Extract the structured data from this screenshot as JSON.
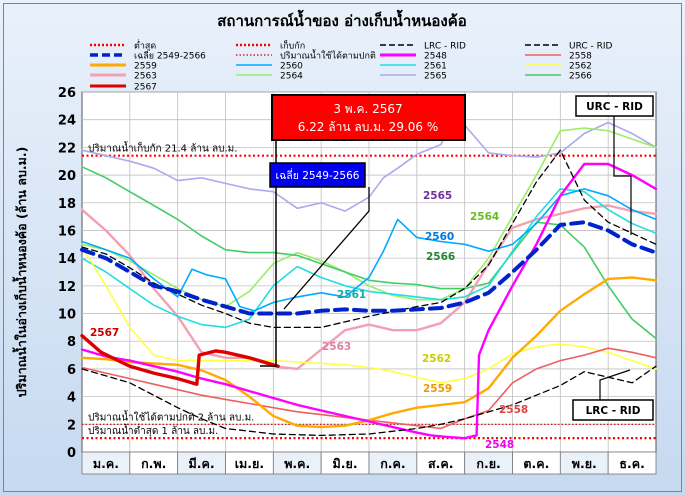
{
  "chart_data": {
    "type": "line",
    "title": "สถานการณ์น้ำของ อ่างเก็บน้ำหนองค้อ",
    "ylabel": "ปริมาณน้ำในอ่างเก็บน้ำหนองค้อ (ล้าน ลบ.ม.)",
    "xlabel": "",
    "ylim": [
      0,
      26
    ],
    "yticks": [
      0,
      2,
      4,
      6,
      8,
      10,
      12,
      14,
      16,
      18,
      20,
      22,
      24,
      26
    ],
    "x_units": "month index (0 = start of ม.ค.)",
    "xlim": [
      0,
      12
    ],
    "categories": [
      "ม.ค.",
      "ก.พ.",
      "มี.ค.",
      "เม.ย.",
      "พ.ค.",
      "มิ.ย.",
      "ก.ค.",
      "ส.ค.",
      "ก.ย.",
      "ต.ค.",
      "พ.ย.",
      "ธ.ค."
    ],
    "grid": true,
    "legend_position": "top",
    "reference_lines": [
      {
        "name": "ต่ำสุด",
        "value": 1.0,
        "color": "#ff0000",
        "label": "ปริมาณน้ำต่ำสุด 1 ล้าน ลบ.ม."
      },
      {
        "name": "เก็บกัก",
        "value": 21.4,
        "color": "#ff0000",
        "label": "ปริมาณน้ำเก็บกัก 21.4 ล้าน ลบ.ม."
      },
      {
        "name": "ปริมาณน้ำใช้ได้ตามปกติ",
        "value": 2.0,
        "color": "#cc0000",
        "label": "ปริมาณน้ำใช้ได้ตามปกติ 2 ล้าน ลบ.ม."
      }
    ],
    "series": [
      {
        "name": "LRC - RID",
        "color": "#000000",
        "style": "dashed",
        "width": 1.3,
        "x": [
          0,
          1,
          2,
          2.5,
          3,
          3.5,
          4,
          5,
          6,
          7,
          7.5,
          8,
          9,
          10,
          10.5,
          11,
          11.5,
          12
        ],
        "y": [
          6.0,
          5.0,
          3.2,
          2.4,
          1.7,
          1.5,
          1.3,
          1.2,
          1.3,
          1.7,
          2.0,
          2.4,
          3.4,
          4.8,
          5.8,
          5.4,
          5.0,
          6.2
        ]
      },
      {
        "name": "URC - RID",
        "color": "#000000",
        "style": "dashed",
        "width": 1.3,
        "x": [
          0,
          0.5,
          1,
          1.5,
          2,
          2.5,
          3,
          3.5,
          4,
          5,
          6,
          7,
          7.5,
          8,
          8.5,
          9,
          9.5,
          10,
          10.5,
          11,
          11.5,
          12
        ],
        "y": [
          14.8,
          14.3,
          13.3,
          12.2,
          11.4,
          10.6,
          10.0,
          9.3,
          9.0,
          9.0,
          9.8,
          10.5,
          10.8,
          11.8,
          13.5,
          16.5,
          19.5,
          21.8,
          18.2,
          16.6,
          15.8,
          15.0
        ]
      },
      {
        "name": "เฉลี่ย 2549-2566",
        "color": "#0022cc",
        "style": "dashed",
        "width": 4,
        "x": [
          0,
          0.5,
          1,
          1.5,
          2,
          2.5,
          3,
          3.5,
          4,
          4.5,
          5,
          5.5,
          6,
          6.5,
          7,
          7.5,
          8,
          8.5,
          9,
          9.5,
          10,
          10.5,
          11,
          11.5,
          12
        ],
        "y": [
          14.6,
          14.0,
          13.0,
          12.0,
          11.6,
          11.0,
          10.5,
          10.0,
          10.0,
          10.0,
          10.2,
          10.3,
          10.2,
          10.2,
          10.3,
          10.4,
          10.8,
          11.5,
          13.0,
          14.6,
          16.4,
          16.6,
          16.0,
          15.0,
          14.4
        ]
      },
      {
        "name": "2548",
        "color": "#ff00ff",
        "width": 2.4,
        "x": [
          0,
          0.5,
          1,
          1.5,
          2,
          2.5,
          3,
          3.5,
          4,
          4.5,
          5,
          5.5,
          6,
          6.5,
          7,
          7.3,
          7.6,
          8,
          8.25,
          8.3,
          8.5,
          9,
          9.5,
          10,
          10.5,
          11,
          11.5,
          12
        ],
        "y": [
          7.4,
          6.9,
          6.6,
          6.2,
          5.8,
          5.3,
          4.9,
          4.4,
          3.9,
          3.4,
          3.0,
          2.6,
          2.2,
          1.8,
          1.4,
          1.2,
          1.1,
          1.0,
          1.2,
          7.0,
          8.8,
          12.0,
          15.0,
          18.5,
          20.8,
          20.8,
          20.0,
          19.0
        ]
      },
      {
        "name": "2558",
        "color": "#ee6060",
        "width": 1.6,
        "x": [
          0,
          0.5,
          1,
          1.5,
          2,
          2.5,
          3,
          3.5,
          4,
          4.5,
          5,
          5.5,
          6,
          6.5,
          7,
          7.5,
          8,
          8.5,
          9,
          9.5,
          10,
          10.5,
          11,
          11.5,
          12
        ],
        "y": [
          6.1,
          5.7,
          5.3,
          4.9,
          4.5,
          4.1,
          3.8,
          3.5,
          3.2,
          2.9,
          2.7,
          2.5,
          2.3,
          2.1,
          1.9,
          1.7,
          2.4,
          3.0,
          5.0,
          6.0,
          6.6,
          7.0,
          7.5,
          7.2,
          6.8
        ]
      },
      {
        "name": "2559",
        "color": "#ffaa00",
        "width": 2.4,
        "x": [
          0,
          0.5,
          1,
          1.5,
          2,
          2.5,
          3,
          3.5,
          4,
          4.5,
          5,
          5.5,
          6,
          6.5,
          7,
          7.5,
          8,
          8.5,
          9,
          9.5,
          10,
          10.5,
          11,
          11.5,
          12
        ],
        "y": [
          6.8,
          6.7,
          6.5,
          6.4,
          6.3,
          5.9,
          5.2,
          4.0,
          2.6,
          1.9,
          1.8,
          1.9,
          2.3,
          2.8,
          3.2,
          3.4,
          3.6,
          4.6,
          6.8,
          8.4,
          10.2,
          11.4,
          12.5,
          12.6,
          12.4
        ]
      },
      {
        "name": "2560",
        "color": "#00aaff",
        "width": 1.6,
        "x": [
          0,
          0.5,
          1,
          1.5,
          2,
          2.3,
          2.6,
          3,
          3.3,
          3.6,
          4,
          4.5,
          5,
          5.5,
          6,
          6.3,
          6.6,
          7,
          7.5,
          8,
          8.5,
          9,
          9.5,
          10,
          10.5,
          11,
          11.5,
          12
        ],
        "y": [
          15.2,
          14.6,
          14.0,
          12.5,
          11.2,
          13.2,
          12.8,
          12.5,
          10.5,
          10.2,
          10.8,
          11.2,
          11.5,
          11.2,
          12.6,
          14.5,
          16.8,
          15.5,
          15.2,
          15.0,
          14.5,
          15.0,
          16.5,
          18.5,
          19.0,
          18.5,
          17.5,
          16.8
        ]
      },
      {
        "name": "2561",
        "color": "#22dddd",
        "width": 1.6,
        "x": [
          0,
          0.5,
          1,
          1.5,
          2,
          2.5,
          3,
          3.5,
          4,
          4.5,
          5,
          5.5,
          6,
          6.5,
          7,
          7.5,
          8,
          8.5,
          9,
          9.5,
          10,
          10.5,
          11,
          11.5,
          12
        ],
        "y": [
          14.0,
          13.0,
          11.8,
          10.6,
          9.8,
          9.2,
          9.0,
          9.6,
          12.0,
          13.4,
          12.6,
          12.0,
          11.6,
          11.4,
          11.2,
          11.0,
          11.2,
          12.0,
          14.5,
          17.0,
          19.0,
          18.8,
          17.5,
          16.5,
          15.8
        ]
      },
      {
        "name": "2562",
        "color": "#ffff44",
        "width": 1.6,
        "x": [
          0,
          0.5,
          1,
          1.5,
          2,
          2.5,
          3,
          3.5,
          4,
          4.5,
          5,
          5.5,
          6,
          6.5,
          7,
          7.5,
          8,
          8.5,
          9,
          9.5,
          10,
          10.5,
          11,
          11.5,
          12
        ],
        "y": [
          14.8,
          12.0,
          9.0,
          7.0,
          6.6,
          6.6,
          6.6,
          6.6,
          6.6,
          6.5,
          6.4,
          6.3,
          6.1,
          5.8,
          5.4,
          5.0,
          5.3,
          6.0,
          7.1,
          7.6,
          7.8,
          7.6,
          7.2,
          6.6,
          6.0
        ]
      },
      {
        "name": "2563",
        "color": "#f4a0b4",
        "width": 2.4,
        "x": [
          0,
          0.5,
          1,
          1.5,
          2,
          2.5,
          3,
          3.5,
          4,
          4.5,
          5,
          5.5,
          6,
          6.5,
          7,
          7.5,
          8,
          8.5,
          9,
          9.5,
          10,
          10.5,
          11,
          11.5,
          12
        ],
        "y": [
          17.5,
          16.0,
          14.2,
          11.8,
          9.8,
          7.2,
          6.8,
          6.8,
          6.2,
          6.0,
          7.4,
          8.8,
          9.2,
          8.8,
          8.8,
          9.3,
          10.8,
          13.6,
          16.2,
          16.8,
          17.2,
          17.6,
          17.8,
          17.4,
          17.2
        ]
      },
      {
        "name": "2564",
        "color": "#99ee66",
        "width": 1.6,
        "x": [
          0,
          0.5,
          1,
          1.5,
          2,
          2.5,
          3,
          3.5,
          4,
          4.5,
          5,
          5.5,
          6,
          6.5,
          7,
          7.5,
          8,
          8.5,
          9,
          9.5,
          10,
          10.5,
          11,
          11.5,
          12
        ],
        "y": [
          15.0,
          14.6,
          13.8,
          12.8,
          11.8,
          11.0,
          10.5,
          11.6,
          13.6,
          14.4,
          13.8,
          13.0,
          12.0,
          11.3,
          11.0,
          11.0,
          11.8,
          14.0,
          17.0,
          20.0,
          23.2,
          23.4,
          23.2,
          22.6,
          22.0
        ]
      },
      {
        "name": "2565",
        "color": "#aaaaee",
        "width": 1.6,
        "x": [
          0,
          0.5,
          1,
          1.5,
          2,
          2.5,
          3,
          3.5,
          4,
          4.5,
          5,
          5.5,
          6,
          6.3,
          6.6,
          7,
          7.5,
          7.8,
          8,
          8.5,
          9,
          9.5,
          10,
          10.5,
          11,
          11.5,
          12
        ],
        "y": [
          21.8,
          21.4,
          21.0,
          20.5,
          19.6,
          19.8,
          19.4,
          19.0,
          18.8,
          17.6,
          18.0,
          17.4,
          18.4,
          19.8,
          20.5,
          21.5,
          22.2,
          24.2,
          23.6,
          21.6,
          21.4,
          21.3,
          21.6,
          23.0,
          23.8,
          23.0,
          22.0
        ]
      },
      {
        "name": "2566",
        "color": "#44cc66",
        "width": 1.6,
        "x": [
          0,
          0.5,
          1,
          1.5,
          2,
          2.5,
          3,
          3.5,
          4,
          4.5,
          5,
          5.5,
          6,
          6.5,
          7,
          7.5,
          8,
          8.5,
          9,
          9.5,
          10,
          10.5,
          11,
          11.5,
          12
        ],
        "y": [
          20.6,
          19.8,
          18.8,
          17.8,
          16.8,
          15.6,
          14.6,
          14.4,
          14.4,
          14.2,
          13.6,
          13.0,
          12.4,
          12.2,
          12.1,
          11.8,
          11.8,
          12.2,
          14.4,
          16.6,
          16.4,
          14.8,
          12.0,
          9.6,
          8.2
        ]
      },
      {
        "name": "2567",
        "color": "#dd0000",
        "width": 3.4,
        "x": [
          0,
          0.4,
          1,
          1.5,
          2,
          2.4,
          2.45,
          2.8,
          3,
          3.5,
          4.1
        ],
        "y": [
          8.4,
          7.2,
          6.2,
          5.7,
          5.3,
          4.9,
          7.0,
          7.3,
          7.2,
          6.8,
          6.2
        ]
      }
    ],
    "annotations": [
      {
        "text": "3 พ.ค. 2567",
        "box": "current"
      },
      {
        "text": "6.22 ล้าน ลบ.ม. 29.06 %",
        "box": "current"
      },
      {
        "text": "เฉลี่ย 2549-2566",
        "box": "average"
      },
      {
        "text": "URC - RID",
        "box": "urc"
      },
      {
        "text": "LRC - RID",
        "box": "lrc"
      },
      {
        "text": "2565",
        "color": "#7030a0"
      },
      {
        "text": "2564",
        "color": "#66bb22"
      },
      {
        "text": "2560",
        "color": "#0077dd"
      },
      {
        "text": "2566",
        "color": "#228833"
      },
      {
        "text": "2561",
        "color": "#11aaaa"
      },
      {
        "text": "2563",
        "color": "#e080a0"
      },
      {
        "text": "2562",
        "color": "#cccc00"
      },
      {
        "text": "2559",
        "color": "#ee9900"
      },
      {
        "text": "2558",
        "color": "#dd4444"
      },
      {
        "text": "2548",
        "color": "#ee00ee"
      },
      {
        "text": "2567",
        "color": "#cc0000"
      }
    ]
  },
  "legend": [
    {
      "label": "ต่ำสุด",
      "color": "#ff0000",
      "style": "dotted-bold"
    },
    {
      "label": "เก็บกัก",
      "color": "#ff0000",
      "style": "dotted-bold"
    },
    {
      "label": "LRC - RID",
      "color": "#000000",
      "style": "dashed"
    },
    {
      "label": "URC - RID",
      "color": "#000000",
      "style": "dashed"
    },
    {
      "label": "เฉลี่ย 2549-2566",
      "color": "#0022cc",
      "style": "dashed-bold"
    },
    {
      "label": "ปริมาณน้ำใช้ได้ตามปกติ",
      "color": "#cc0000",
      "style": "dotted"
    },
    {
      "label": "2548",
      "color": "#ff00ff",
      "style": "solid-bold"
    },
    {
      "label": "2558",
      "color": "#ee6060",
      "style": "solid"
    },
    {
      "label": "2559",
      "color": "#ffaa00",
      "style": "solid-bold"
    },
    {
      "label": "2560",
      "color": "#00aaff",
      "style": "solid"
    },
    {
      "label": "2561",
      "color": "#22dddd",
      "style": "solid"
    },
    {
      "label": "2562",
      "color": "#ffff44",
      "style": "solid"
    },
    {
      "label": "2563",
      "color": "#f4a0b4",
      "style": "solid-bold"
    },
    {
      "label": "2564",
      "color": "#99ee66",
      "style": "solid"
    },
    {
      "label": "2565",
      "color": "#aaaaee",
      "style": "solid"
    },
    {
      "label": "2566",
      "color": "#44cc66",
      "style": "solid"
    },
    {
      "label": "2567",
      "color": "#dd0000",
      "style": "solid-bold"
    }
  ]
}
